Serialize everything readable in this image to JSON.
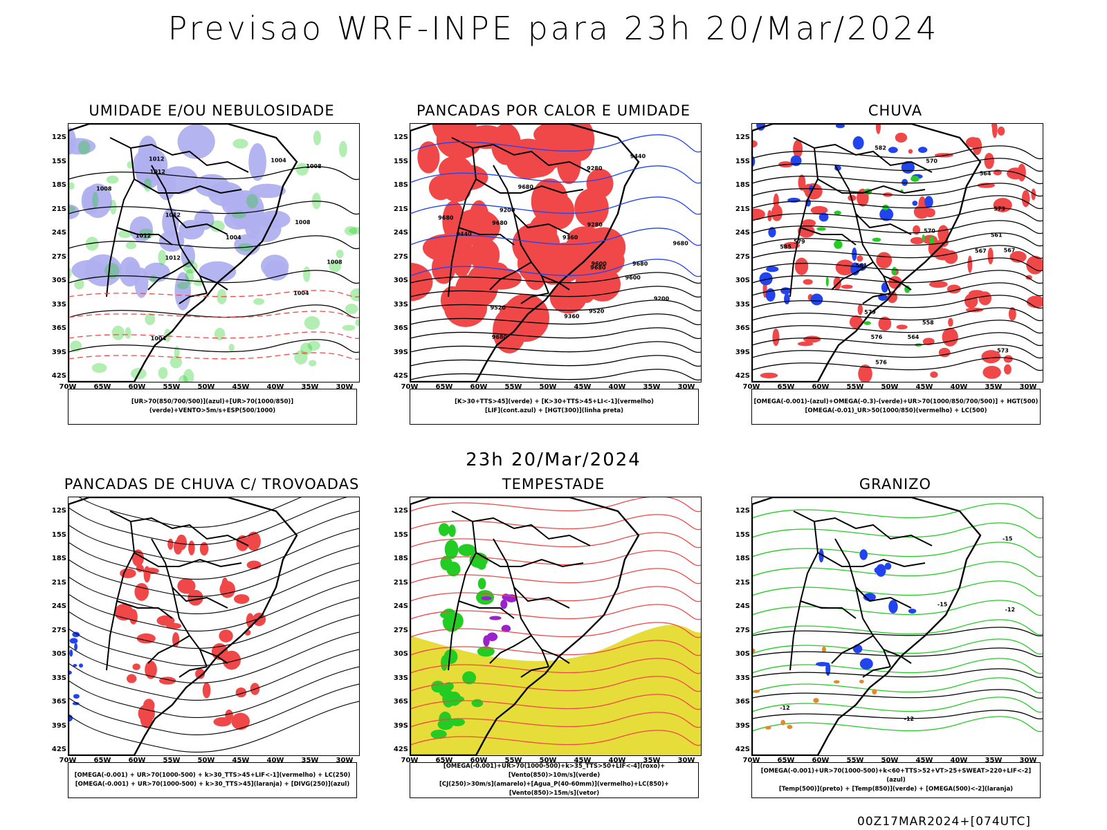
{
  "header": {
    "title": "Previsao WRF-INPE  para 23h 20/Mar/2024",
    "mid_time": "23h 20/Mar/2024",
    "footer": "00Z17MAR2024+[074UTC]"
  },
  "axes": {
    "lat_labels": [
      "12S",
      "15S",
      "18S",
      "21S",
      "24S",
      "27S",
      "30S",
      "33S",
      "36S",
      "39S",
      "42S"
    ],
    "lon_labels": [
      "70W",
      "65W",
      "60W",
      "55W",
      "50W",
      "45W",
      "40W",
      "35W",
      "30W"
    ]
  },
  "colors": {
    "red": "#f04848",
    "green": "#22cc22",
    "blue": "#2244ee",
    "lavender": "#b0b0f0",
    "yellow": "#e6dc3a",
    "purple": "#9a22cc",
    "orange": "#e08a2a",
    "darkgreen": "#1f4f3f"
  },
  "panels": [
    {
      "title": "UMIDADE E/OU NEBULOSIDADE",
      "legend": [
        "[UR>70(850/700/500)](azul)+[UR>70(1000/850)](verde)+VENTO>5m/s+ESP(500/1000)"
      ],
      "contour_labels": [
        "1008",
        "1008",
        "1012",
        "1012",
        "1004",
        "1008",
        "1012",
        "1004",
        "1008",
        "1004",
        "1012",
        "1012",
        "1004"
      ]
    },
    {
      "title": "PANCADAS POR CALOR E UMIDADE",
      "legend": [
        "[K>30+TTS>45](verde) + [K>30+TTS>45+LI<-1](vermelho)",
        "[LIF](cont.azul) + [HGT(300)](linha preta)"
      ],
      "contour_labels": [
        "9680",
        "9680",
        "9680",
        "9680",
        "9680",
        "9680",
        "9680",
        "9600",
        "9600",
        "9520",
        "9520",
        "9440",
        "9440",
        "9360",
        "9360",
        "9280",
        "9280",
        "9200",
        "9200"
      ]
    },
    {
      "title": "CHUVA",
      "legend": [
        "[OMEGA(-0.001)-(azul)+OMEGA(-0.3)-(verde)+UR>70(1000/850/700/500)] + HGT(500)",
        "[OMEGA(-0.01)_UR>50(1000/850)(vermelho) + LC(500)"
      ],
      "contour_labels": [
        "585",
        "582",
        "579",
        "576",
        "573",
        "570",
        "567",
        "564",
        "561",
        "558",
        "579",
        "576",
        "573",
        "570",
        "567",
        "564",
        "561"
      ]
    },
    {
      "title": "PANCADAS DE CHUVA C/ TROVOADAS",
      "legend": [
        "[OMEGA(-0.001) + UR>70(1000-500) + k>30_TTS>45+LIF<-1](vermelho) + LC(250)",
        "[OMEGA(-0.001) + UR>70(1000-500) + k>30_TTS>45](laranja) + [DIVG(250)](azul)"
      ],
      "contour_labels": []
    },
    {
      "title": "TEMPESTADE",
      "legend": [
        "[OMEGA(-0.001)+UR>70(1000-500)+k>35_TTS>50+LIF<-4](roxo)+[Vento(850)>10m/s](verde)",
        "[CJ(250)>30m/s](amarelo)+[Agua_P(40-60mm)](vermelho)+LC(850)+[Vento(850)>15m/s](vetor)"
      ],
      "contour_labels": []
    },
    {
      "title": "GRANIZO",
      "legend": [
        "[OMEGA(-0.001)+UR>70(1000-500)+k<60+TTS>52+VT>25+SWEAT>220+LIF<-2](azul)",
        "[Temp(500)](preto) + [Temp(850)](verde) + [OMEGA(500)<-2](laranja)"
      ],
      "contour_labels": [
        "-12",
        "-15",
        "-12",
        "-12",
        "-15"
      ]
    }
  ]
}
